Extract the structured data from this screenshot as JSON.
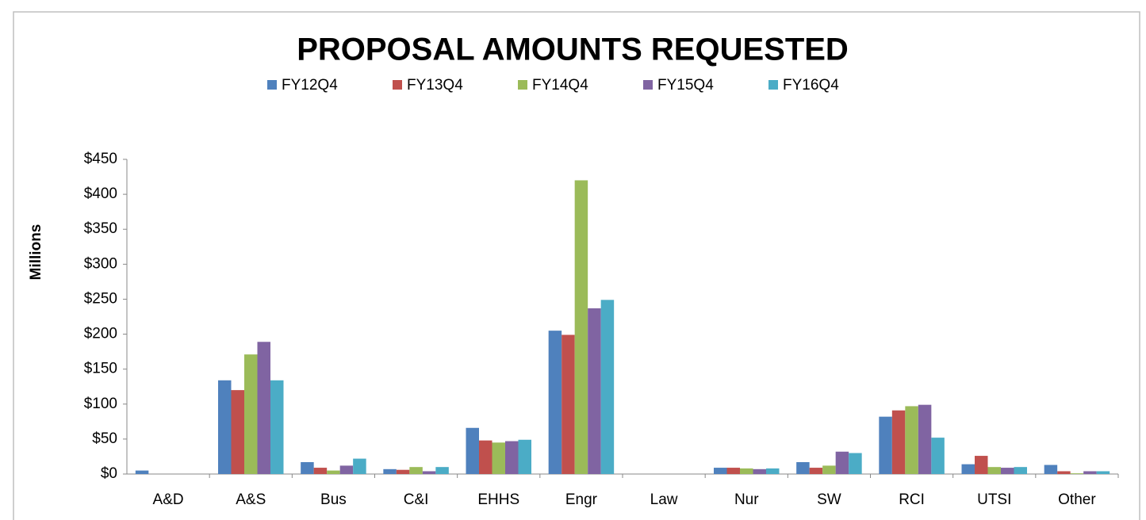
{
  "chart_data": {
    "type": "bar",
    "title": "PROPOSAL AMOUNTS REQUESTED",
    "y_label": "Millions",
    "categories": [
      "A&D",
      "A&S",
      "Bus",
      "C&I",
      "EHHS",
      "Engr",
      "Law",
      "Nur",
      "SW",
      "RCI",
      "UTSI",
      "Other"
    ],
    "series": [
      {
        "name": "FY12Q4",
        "color": "#4f81bd",
        "values": [
          5,
          134,
          17,
          7,
          66,
          205,
          0,
          9,
          17,
          82,
          14,
          13
        ]
      },
      {
        "name": "FY13Q4",
        "color": "#c0504d",
        "values": [
          0,
          120,
          9,
          6,
          48,
          199,
          0,
          9,
          9,
          91,
          26,
          4
        ]
      },
      {
        "name": "FY14Q4",
        "color": "#9bbb59",
        "values": [
          0,
          171,
          5,
          10,
          45,
          420,
          0,
          8,
          12,
          97,
          10,
          1
        ]
      },
      {
        "name": "FY15Q4",
        "color": "#8064a2",
        "values": [
          0,
          189,
          12,
          4,
          47,
          237,
          0,
          7,
          32,
          99,
          9,
          4
        ]
      },
      {
        "name": "FY16Q4",
        "color": "#4bacc6",
        "values": [
          0,
          134,
          22,
          10,
          49,
          249,
          0,
          8,
          30,
          52,
          10,
          4
        ]
      }
    ],
    "ylim": [
      0,
      450
    ],
    "yticks": [
      {
        "value": 0,
        "label": "$0"
      },
      {
        "value": 50,
        "label": "$50"
      },
      {
        "value": 100,
        "label": "$100"
      },
      {
        "value": 150,
        "label": "$150"
      },
      {
        "value": 200,
        "label": "$200"
      },
      {
        "value": 250,
        "label": "$250"
      },
      {
        "value": 300,
        "label": "$300"
      },
      {
        "value": 350,
        "label": "$350"
      },
      {
        "value": 400,
        "label": "$400"
      },
      {
        "value": 450,
        "label": "$450"
      }
    ],
    "legend": "top"
  }
}
